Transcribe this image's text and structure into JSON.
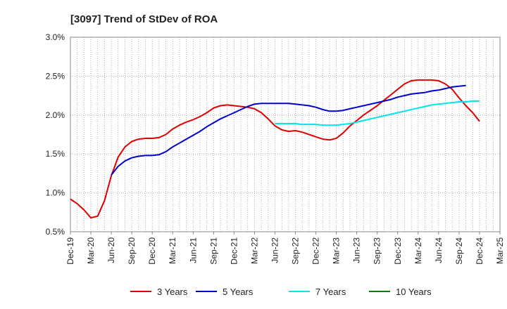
{
  "chart_data": {
    "type": "line",
    "title": "[3097]  Trend of StDev of ROA",
    "xlabel": "",
    "ylabel": "",
    "ylim": [
      0.5,
      3.0
    ],
    "y_ticks": [
      "0.5%",
      "1.0%",
      "1.5%",
      "2.0%",
      "2.5%",
      "3.0%"
    ],
    "x_tick_labels": [
      "Dec-19",
      "Mar-20",
      "Jun-20",
      "Sep-20",
      "Dec-20",
      "Mar-21",
      "Jun-21",
      "Sep-21",
      "Dec-21",
      "Mar-22",
      "Jun-22",
      "Sep-22",
      "Dec-22",
      "Mar-23",
      "Jun-23",
      "Sep-23",
      "Dec-23",
      "Mar-24",
      "Jun-24",
      "Sep-24",
      "Dec-24",
      "Mar-25"
    ],
    "grid": true,
    "legend_position": "bottom",
    "series": [
      {
        "name": "3 Years",
        "color": "#e00000",
        "start_index": 0,
        "values": [
          0.92,
          0.86,
          0.78,
          0.68,
          0.7,
          0.9,
          1.22,
          1.46,
          1.59,
          1.66,
          1.69,
          1.7,
          1.7,
          1.71,
          1.75,
          1.82,
          1.87,
          1.91,
          1.94,
          1.98,
          2.03,
          2.09,
          2.12,
          2.13,
          2.12,
          2.11,
          2.1,
          2.08,
          2.03,
          1.95,
          1.86,
          1.81,
          1.79,
          1.8,
          1.78,
          1.75,
          1.72,
          1.69,
          1.68,
          1.7,
          1.77,
          1.86,
          1.93,
          2.0,
          2.06,
          2.12,
          2.19,
          2.26,
          2.33,
          2.4,
          2.44,
          2.45,
          2.45,
          2.45,
          2.44,
          2.4,
          2.33,
          2.22,
          2.12,
          2.03,
          1.92
        ]
      },
      {
        "name": "5 Years",
        "color": "#0000cc",
        "start_index": 6,
        "values": [
          1.23,
          1.34,
          1.41,
          1.45,
          1.47,
          1.48,
          1.48,
          1.49,
          1.53,
          1.59,
          1.64,
          1.69,
          1.74,
          1.79,
          1.85,
          1.9,
          1.95,
          1.99,
          2.03,
          2.07,
          2.11,
          2.14,
          2.15,
          2.15,
          2.15,
          2.15,
          2.15,
          2.14,
          2.13,
          2.12,
          2.1,
          2.07,
          2.05,
          2.05,
          2.06,
          2.08,
          2.1,
          2.12,
          2.14,
          2.16,
          2.18,
          2.2,
          2.23,
          2.25,
          2.27,
          2.28,
          2.29,
          2.31,
          2.32,
          2.34,
          2.36,
          2.37,
          2.38
        ]
      },
      {
        "name": "7 Years",
        "color": "#00e5e5",
        "start_index": 30,
        "values": [
          1.89,
          1.89,
          1.89,
          1.89,
          1.88,
          1.88,
          1.88,
          1.87,
          1.87,
          1.87,
          1.88,
          1.89,
          1.91,
          1.93,
          1.95,
          1.97,
          1.99,
          2.01,
          2.03,
          2.05,
          2.07,
          2.09,
          2.11,
          2.13,
          2.14,
          2.15,
          2.16,
          2.17,
          2.17,
          2.18,
          2.18
        ]
      },
      {
        "name": "10 Years",
        "color": "#008000",
        "start_index": 0,
        "values": []
      }
    ]
  }
}
